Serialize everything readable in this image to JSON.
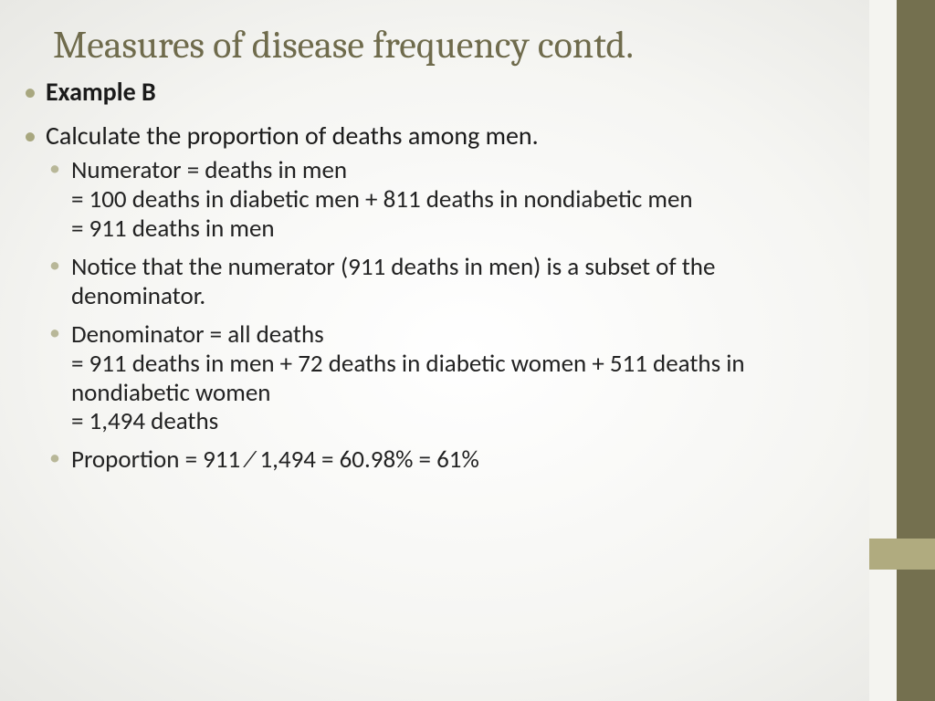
{
  "colors": {
    "title_color": "#6f6b4c",
    "body_text_color": "#1a1a1a",
    "bullet_level1_color": "#a8a77f",
    "bullet_level2_color": "#b8b798",
    "sidebar_dark": "#74704f",
    "sidebar_light": "#f4f4f0",
    "sidebar_accent": "#b0ab7f",
    "background_center": "#ffffff",
    "background_edge": "#e8e8e4"
  },
  "typography": {
    "title_font": "Cambria",
    "body_font": "Calibri",
    "title_size_pt": 32,
    "level1_size_pt": 21,
    "level2_size_pt": 20
  },
  "title": "Measures of disease frequency contd.",
  "bullets": {
    "b1": "Example B",
    "b2": "Calculate the proportion of deaths among men.",
    "sub": {
      "s1_line1": "Numerator = deaths in men",
      "s1_line2": "= 100 deaths in diabetic men + 811 deaths in nondiabetic men",
      "s1_line3": "= 911 deaths in men",
      "s2": "Notice that the numerator (911 deaths in men) is a subset of the denominator.",
      "s3_line1": "Denominator = all deaths",
      "s3_line2": "= 911 deaths in men + 72 deaths in diabetic women + 511 deaths in nondiabetic women",
      "s3_line3": "= 1,494 deaths",
      "s4": "Proportion = 911 ⁄ 1,494 = 60.98% = 61%"
    }
  }
}
